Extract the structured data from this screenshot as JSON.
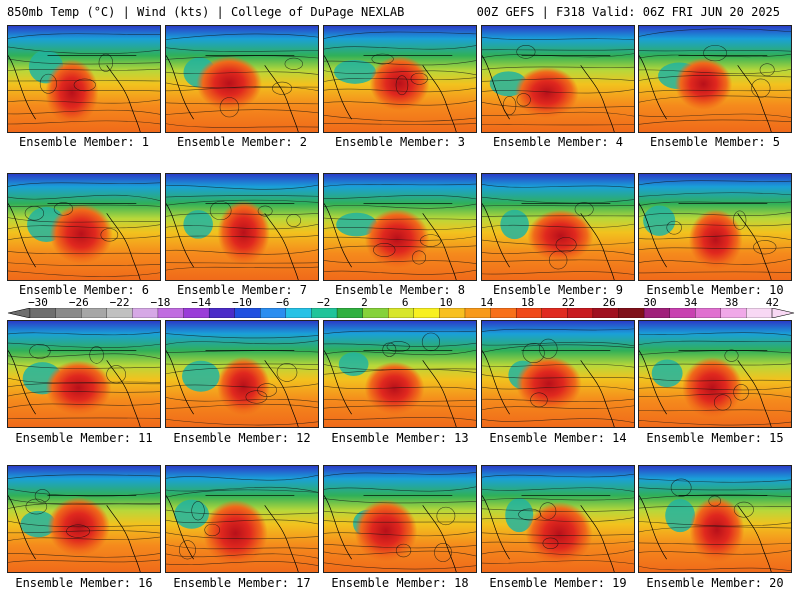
{
  "header": {
    "left": "850mb Temp (°C) | Wind (kts) | College of DuPage NEXLAB",
    "right": "00Z GEFS | F318 Valid: 06Z FRI JUN 20 2025"
  },
  "caption_prefix": "Ensemble Member: ",
  "members": [
    {
      "label": "Ensemble Member: 1"
    },
    {
      "label": "Ensemble Member: 2"
    },
    {
      "label": "Ensemble Member: 3"
    },
    {
      "label": "Ensemble Member: 4"
    },
    {
      "label": "Ensemble Member: 5"
    },
    {
      "label": "Ensemble Member: 6"
    },
    {
      "label": "Ensemble Member: 7"
    },
    {
      "label": "Ensemble Member: 8"
    },
    {
      "label": "Ensemble Member: 9"
    },
    {
      "label": "Ensemble Member: 10"
    },
    {
      "label": "Ensemble Member: 11"
    },
    {
      "label": "Ensemble Member: 12"
    },
    {
      "label": "Ensemble Member: 13"
    },
    {
      "label": "Ensemble Member: 14"
    },
    {
      "label": "Ensemble Member: 15"
    },
    {
      "label": "Ensemble Member: 16"
    },
    {
      "label": "Ensemble Member: 17"
    },
    {
      "label": "Ensemble Member: 18"
    },
    {
      "label": "Ensemble Member: 19"
    },
    {
      "label": "Ensemble Member: 20"
    }
  ],
  "colorbar": {
    "labels": [
      "−30",
      "−26",
      "−22",
      "−18",
      "−14",
      "−10",
      "−6",
      "−2",
      "2",
      "6",
      "10",
      "14",
      "18",
      "22",
      "26",
      "30",
      "34",
      "38",
      "42"
    ],
    "colors": [
      "#6e6e6e",
      "#8a8a8a",
      "#a6a6a6",
      "#c0c0c0",
      "#d6a8e6",
      "#c06ce0",
      "#9a3cd8",
      "#4b2cc8",
      "#2050e0",
      "#2a8ef0",
      "#26c2e6",
      "#20c49a",
      "#30b040",
      "#86d23a",
      "#d8e62a",
      "#f8f020",
      "#f8c020",
      "#f89a1a",
      "#f8701a",
      "#f04818",
      "#e02a20",
      "#c81a20",
      "#a01020",
      "#80101a",
      "#a0207a",
      "#c840b0",
      "#e070d0",
      "#f0a8e8",
      "#f8d8f4"
    ]
  }
}
